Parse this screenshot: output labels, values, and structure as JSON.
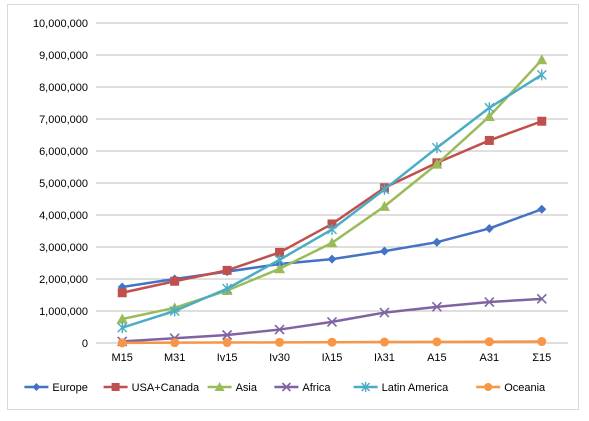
{
  "chart_data": {
    "type": "line",
    "categories": [
      "M15",
      "M31",
      "Iv15",
      "Iv30",
      "Iλ15",
      "Iλ31",
      "A15",
      "A31",
      "Σ15"
    ],
    "ylim": [
      0,
      10000000
    ],
    "y_ticks": [
      "0",
      "1,000,000",
      "2,000,000",
      "3,000,000",
      "4,000,000",
      "5,000,000",
      "6,000,000",
      "7,000,000",
      "8,000,000",
      "9,000,000",
      "10,000,000"
    ],
    "grid": "horizontal",
    "legend_position": "bottom",
    "series": [
      {
        "name": "Europe",
        "color": "#4472c4",
        "marker": "diamond",
        "values": [
          1750000,
          2000000,
          2230000,
          2470000,
          2620000,
          2870000,
          3150000,
          3580000,
          4180000
        ]
      },
      {
        "name": "USA+Canada",
        "color": "#c0504d",
        "marker": "square",
        "values": [
          1570000,
          1930000,
          2270000,
          2830000,
          3720000,
          4850000,
          5630000,
          6330000,
          6930000
        ]
      },
      {
        "name": "Asia",
        "color": "#9bbb59",
        "marker": "triangle",
        "values": [
          750000,
          1100000,
          1640000,
          2320000,
          3130000,
          4270000,
          5590000,
          7080000,
          8850000
        ]
      },
      {
        "name": "Africa",
        "color": "#8064a2",
        "marker": "x",
        "values": [
          50000,
          150000,
          250000,
          420000,
          660000,
          950000,
          1130000,
          1280000,
          1380000
        ]
      },
      {
        "name": "Latin America",
        "color": "#4bacc6",
        "marker": "star",
        "values": [
          480000,
          1000000,
          1700000,
          2600000,
          3550000,
          4800000,
          6100000,
          7350000,
          8380000
        ]
      },
      {
        "name": "Oceania",
        "color": "#f79646",
        "marker": "circle",
        "values": [
          5000,
          10000,
          15000,
          20000,
          25000,
          30000,
          35000,
          40000,
          45000
        ]
      }
    ]
  }
}
